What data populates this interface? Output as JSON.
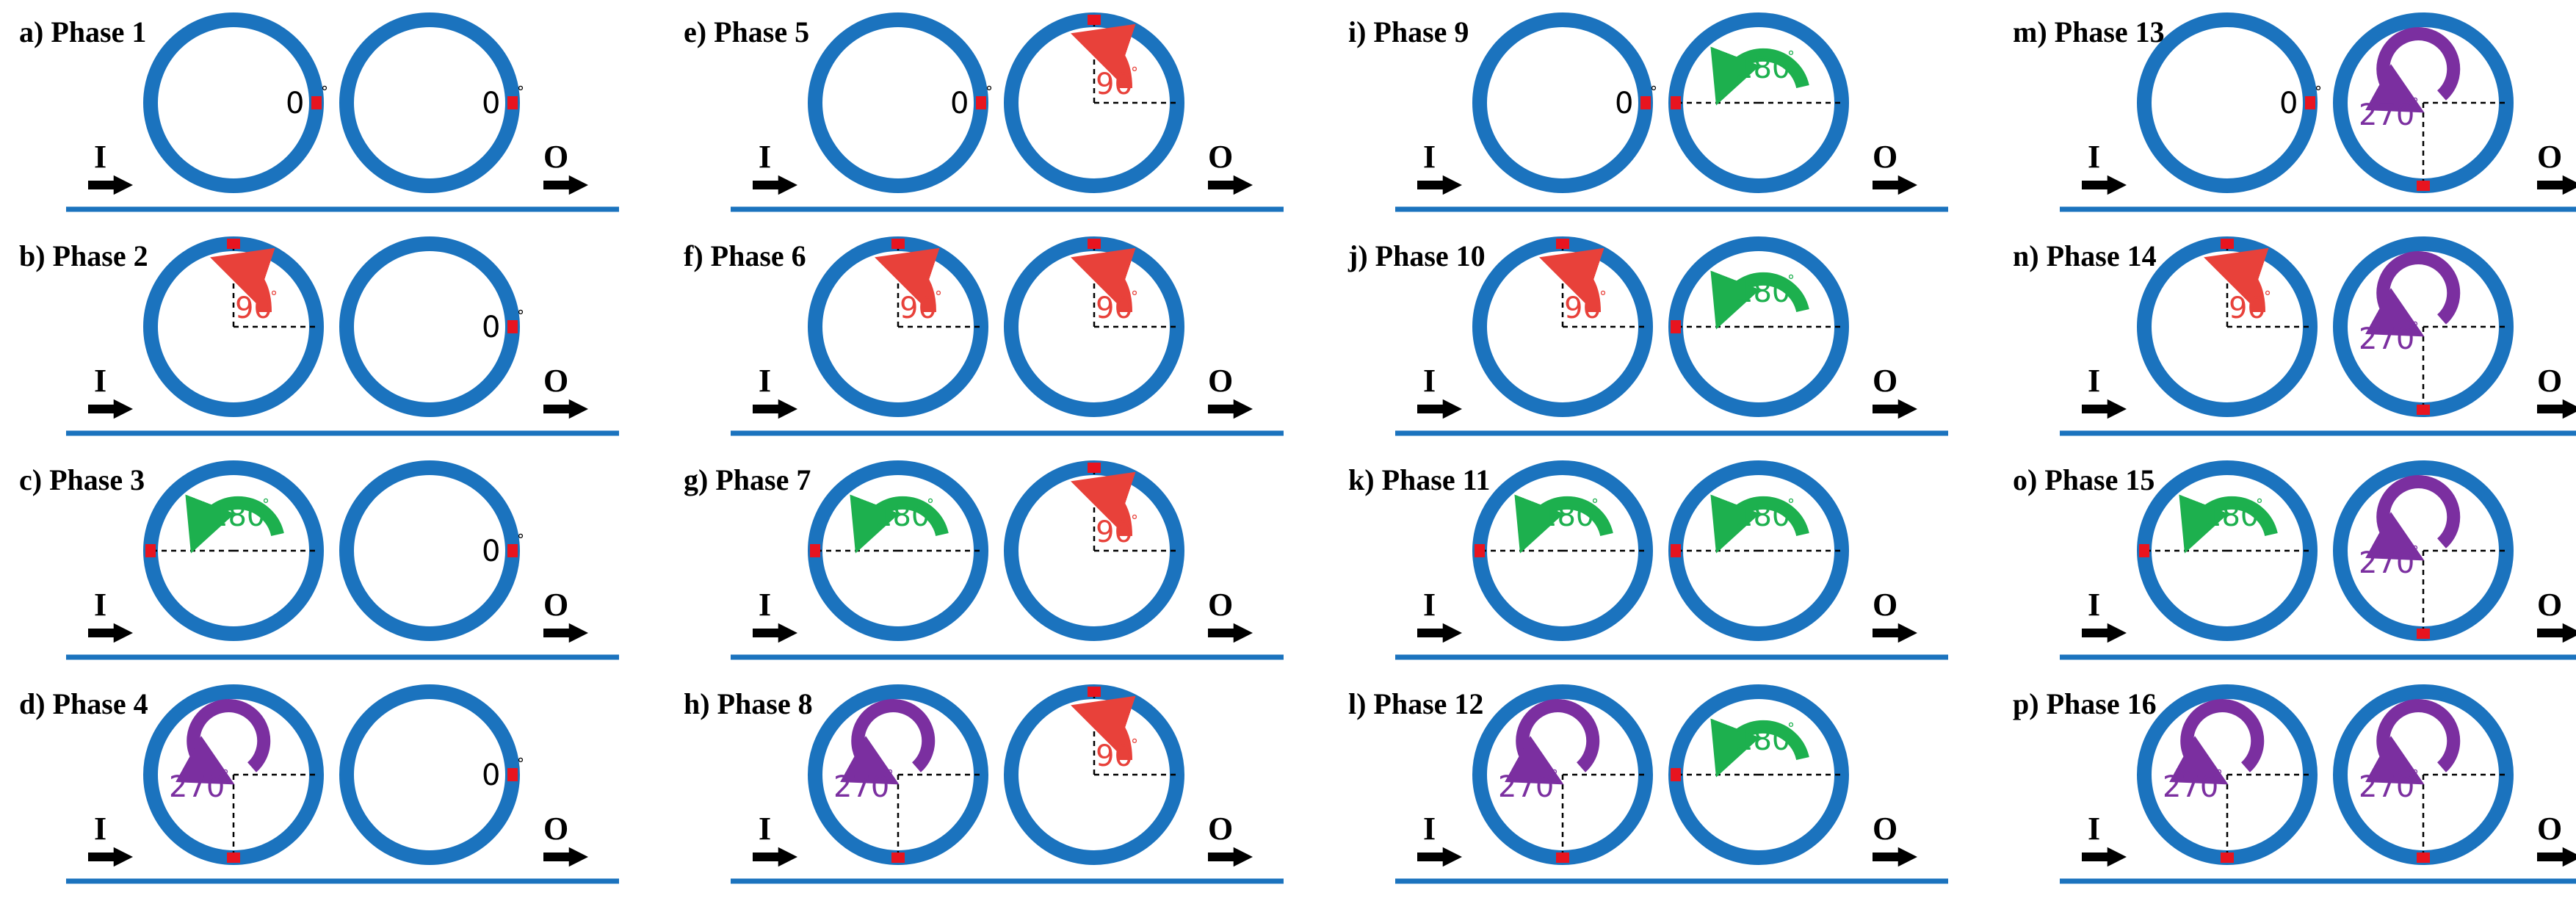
{
  "colors": {
    "ring": "#1b73be",
    "waveguide": "#1b73be",
    "marker": "#e8141f",
    "deg0": "#000000",
    "deg90": "#e8413a",
    "deg180": "#1db04e",
    "deg270": "#7b2fa0"
  },
  "labels": {
    "input": "I",
    "output": "O",
    "degree_mark": "°"
  },
  "panels": [
    {
      "label": "a) Phase 1",
      "phases": [
        0,
        0
      ]
    },
    {
      "label": "b) Phase 2",
      "phases": [
        90,
        0
      ]
    },
    {
      "label": "c) Phase 3",
      "phases": [
        180,
        0
      ]
    },
    {
      "label": "d) Phase 4",
      "phases": [
        270,
        0
      ]
    },
    {
      "label": "e) Phase 5",
      "phases": [
        0,
        90
      ]
    },
    {
      "label": "f) Phase 6",
      "phases": [
        90,
        90
      ]
    },
    {
      "label": "g) Phase 7",
      "phases": [
        180,
        90
      ]
    },
    {
      "label": "h) Phase 8",
      "phases": [
        270,
        90
      ]
    },
    {
      "label": "i) Phase 9",
      "phases": [
        0,
        180
      ]
    },
    {
      "label": "j) Phase 10",
      "phases": [
        90,
        180
      ]
    },
    {
      "label": "k) Phase 11",
      "phases": [
        180,
        180
      ]
    },
    {
      "label": "l) Phase 12",
      "phases": [
        270,
        180
      ]
    },
    {
      "label": "m) Phase 13",
      "phases": [
        0,
        270
      ]
    },
    {
      "label": "n) Phase 14",
      "phases": [
        90,
        270
      ]
    },
    {
      "label": "o) Phase 15",
      "phases": [
        180,
        270
      ]
    },
    {
      "label": "p) Phase 16",
      "phases": [
        270,
        270
      ]
    }
  ]
}
